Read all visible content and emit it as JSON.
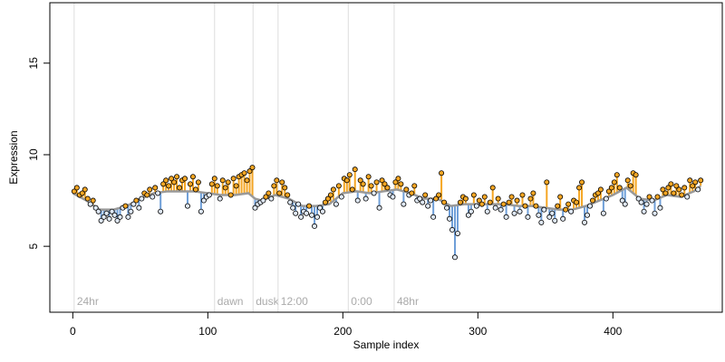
{
  "chart_data": {
    "type": "stem-scatter",
    "x_label": "Sample index",
    "y_label": "Expression",
    "xlim": [
      -17,
      481
    ],
    "ylim": [
      1.4,
      18.3
    ],
    "xticks": [
      0,
      100,
      200,
      300,
      400
    ],
    "yticks": [
      5,
      10,
      15
    ],
    "above_color": "#f5a623",
    "below_color": "#6f9fd8",
    "fit_color": "#999999",
    "vline_color": "#dddddd",
    "annotations": [
      {
        "text": "24hr",
        "x": 1
      },
      {
        "text": "dawn",
        "x": 105
      },
      {
        "text": "dusk",
        "x": 133.5
      },
      {
        "text": "12:00",
        "x": 152
      },
      {
        "text": "0:00",
        "x": 204
      },
      {
        "text": "48hr",
        "x": 238
      }
    ],
    "fit": {
      "x": [
        0,
        10,
        20,
        30,
        40,
        50,
        60,
        70,
        80,
        90,
        100,
        110,
        120,
        130,
        135,
        140,
        150,
        160,
        170,
        180,
        190,
        200,
        210,
        220,
        230,
        240,
        250,
        260,
        270,
        280,
        290,
        300,
        310,
        320,
        330,
        340,
        350,
        360,
        370,
        380,
        390,
        400,
        410,
        420,
        430,
        440,
        450,
        460,
        465
      ],
      "values": [
        7.9,
        7.5,
        7.0,
        7.0,
        7.2,
        7.6,
        7.9,
        8.0,
        8.0,
        8.0,
        7.9,
        7.8,
        7.8,
        7.9,
        7.6,
        7.5,
        7.8,
        7.6,
        7.2,
        7.2,
        7.3,
        7.9,
        8.0,
        7.9,
        8.0,
        8.1,
        7.9,
        7.6,
        7.6,
        7.2,
        7.3,
        7.3,
        7.3,
        7.3,
        7.2,
        7.2,
        7.1,
        7.0,
        7.0,
        7.2,
        7.5,
        7.8,
        8.2,
        7.6,
        7.5,
        7.8,
        7.7,
        8.0,
        8.3
      ]
    },
    "x": [
      1,
      3,
      5,
      7,
      9,
      11,
      13,
      15,
      17,
      19,
      21,
      23,
      25,
      27,
      29,
      31,
      33,
      35,
      37,
      39,
      41,
      43,
      45,
      47,
      49,
      51,
      53,
      55,
      57,
      59,
      61,
      63,
      65,
      67,
      69,
      71,
      73,
      75,
      77,
      79,
      81,
      83,
      85,
      87,
      89,
      91,
      93,
      95,
      97,
      99,
      101,
      103,
      105,
      107,
      109,
      111,
      113,
      115,
      117,
      119,
      121,
      123,
      125,
      127,
      129,
      131,
      133,
      135,
      137,
      139,
      141,
      143,
      145,
      147,
      149,
      151,
      153,
      155,
      157,
      159,
      161,
      163,
      165,
      167,
      169,
      171,
      173,
      175,
      177,
      179,
      181,
      183,
      185,
      187,
      189,
      191,
      193,
      195,
      197,
      199,
      201,
      203,
      205,
      207,
      209,
      211,
      213,
      215,
      217,
      219,
      221,
      223,
      225,
      227,
      229,
      231,
      233,
      235,
      237,
      239,
      241,
      243,
      245,
      247,
      249,
      251,
      253,
      255,
      257,
      259,
      261,
      263,
      265,
      267,
      269,
      271,
      273,
      275,
      277,
      279,
      281,
      283,
      285,
      287,
      289,
      291,
      293,
      295,
      297,
      299,
      301,
      303,
      305,
      307,
      309,
      311,
      313,
      315,
      317,
      319,
      321,
      323,
      325,
      327,
      329,
      331,
      333,
      335,
      337,
      339,
      341,
      343,
      345,
      347,
      349,
      351,
      353,
      355,
      357,
      359,
      361,
      363,
      365,
      367,
      369,
      371,
      373,
      375,
      377,
      379,
      381,
      383,
      385,
      387,
      389,
      391,
      393,
      395,
      397,
      399,
      401,
      403,
      405,
      407,
      409,
      411,
      413,
      415,
      417,
      419,
      421,
      423,
      425,
      427,
      429,
      431,
      433,
      435,
      437,
      439,
      441,
      443,
      445,
      447,
      449,
      451,
      453,
      455,
      457,
      459,
      461,
      463,
      465
    ],
    "values": [
      8.0,
      8.2,
      7.8,
      7.9,
      8.1,
      7.6,
      7.3,
      7.5,
      7.1,
      6.9,
      6.4,
      6.6,
      6.8,
      6.5,
      6.9,
      6.7,
      6.4,
      6.6,
      7.1,
      7.2,
      6.6,
      6.9,
      7.3,
      7.5,
      7.1,
      7.6,
      7.9,
      7.8,
      8.1,
      7.7,
      8.2,
      7.9,
      6.9,
      8.4,
      8.6,
      8.3,
      8.7,
      8.5,
      8.8,
      8.2,
      8.6,
      8.7,
      7.2,
      8.4,
      8.8,
      8.1,
      8.5,
      6.9,
      7.5,
      7.7,
      7.8,
      8.4,
      8.7,
      8.3,
      7.6,
      8.6,
      8.2,
      8.5,
      7.8,
      8.7,
      8.3,
      8.8,
      8.9,
      9.0,
      8.6,
      9.1,
      9.3,
      7.1,
      7.3,
      7.4,
      7.5,
      7.7,
      7.9,
      7.6,
      8.3,
      8.6,
      7.9,
      8.5,
      8.2,
      7.8,
      7.4,
      7.1,
      6.8,
      7.3,
      6.6,
      6.9,
      6.8,
      7.2,
      6.7,
      6.1,
      6.6,
      7.1,
      6.9,
      7.4,
      7.6,
      7.8,
      8.1,
      7.3,
      8.3,
      7.7,
      8.7,
      8.6,
      8.9,
      8.1,
      9.2,
      7.5,
      8.6,
      8.4,
      7.6,
      8.8,
      8.3,
      7.9,
      8.5,
      7.1,
      8.6,
      8.4,
      8.2,
      7.8,
      7.7,
      8.5,
      8.7,
      8.4,
      7.3,
      8.1,
      7.8,
      7.9,
      8.3,
      7.5,
      7.6,
      7.4,
      7.8,
      7.2,
      7.5,
      6.6,
      7.6,
      7.8,
      9.0,
      7.4,
      7.1,
      6.5,
      5.9,
      4.4,
      5.7,
      7.4,
      7.7,
      7.6,
      6.7,
      6.9,
      7.8,
      7.2,
      7.5,
      7.3,
      7.7,
      6.9,
      7.4,
      8.2,
      7.1,
      7.6,
      7.0,
      7.3,
      6.6,
      7.4,
      7.7,
      6.8,
      7.5,
      6.9,
      7.8,
      7.2,
      6.6,
      7.6,
      7.9,
      7.2,
      6.7,
      6.3,
      7.0,
      8.5,
      6.6,
      6.8,
      6.4,
      7.2,
      7.7,
      6.5,
      7.0,
      7.3,
      6.9,
      7.5,
      7.4,
      8.2,
      8.5,
      6.3,
      6.7,
      7.2,
      7.5,
      7.8,
      7.9,
      8.1,
      6.8,
      7.6,
      8.0,
      8.2,
      8.5,
      8.9,
      8.2,
      7.5,
      7.3,
      8.6,
      8.3,
      9.0,
      8.9,
      7.6,
      7.4,
      6.9,
      7.3,
      7.7,
      7.5,
      6.8,
      7.7,
      7.1,
      8.1,
      7.9,
      8.2,
      8.4,
      7.9,
      8.3,
      8.1,
      7.8,
      8.2,
      7.7,
      8.6,
      8.3,
      8.5,
      8.1,
      8.6
    ]
  }
}
